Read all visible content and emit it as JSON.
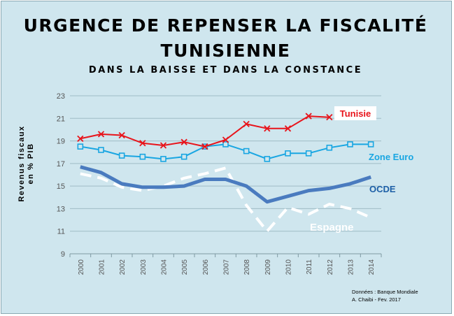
{
  "chart_data": {
    "type": "line",
    "title": "URGENCE DE REPENSER LA FISCALITÉ",
    "title_line2": "TUNISIENNE",
    "subtitle": "DANS LA BAISSE ET DANS LA CONSTANCE",
    "ylabel_line1": "Revenus fiscaux",
    "ylabel_line2": "en % PIB",
    "xlabel": "",
    "x": [
      "2000",
      "2001",
      "2002",
      "2003",
      "2004",
      "2005",
      "2006",
      "2007",
      "2008",
      "2009",
      "2010",
      "2011",
      "2012",
      "2013",
      "2014"
    ],
    "ylim": [
      9,
      23
    ],
    "yticks": [
      "9",
      "11",
      "13",
      "15",
      "17",
      "19",
      "21",
      "23"
    ],
    "grid": true,
    "series": [
      {
        "name": "Tunisie",
        "color": "#e8141b",
        "marker": "x",
        "values": [
          19.2,
          19.6,
          19.5,
          18.8,
          18.6,
          18.9,
          18.5,
          19.1,
          20.5,
          20.1,
          20.1,
          21.2,
          21.1,
          null,
          null
        ]
      },
      {
        "name": "Zone Euro",
        "color": "#19a6e2",
        "marker": "square",
        "values": [
          18.5,
          18.2,
          17.7,
          17.6,
          17.4,
          17.6,
          18.5,
          18.7,
          18.1,
          17.4,
          17.9,
          17.9,
          18.4,
          18.7,
          18.7
        ]
      },
      {
        "name": "OCDE",
        "color": "#4a7bbf",
        "marker": "none",
        "values": [
          16.7,
          16.2,
          15.2,
          14.9,
          14.9,
          15.0,
          15.6,
          15.6,
          15.0,
          13.6,
          14.1,
          14.6,
          14.8,
          15.2,
          15.8
        ]
      },
      {
        "name": "Espagne",
        "color": "#ffffff",
        "marker": "none",
        "dashed": true,
        "values": [
          16.1,
          15.7,
          14.9,
          14.6,
          15.0,
          15.7,
          16.1,
          16.6,
          13.3,
          11.0,
          13.1,
          12.5,
          13.4,
          13.0,
          12.2
        ]
      }
    ],
    "label_colors": {
      "Tunisie": "#e8141b",
      "Zone Euro": "#19a6e2",
      "OCDE": "#1d5fa6",
      "Espagne": "#ffffff"
    }
  },
  "source": {
    "line1": "Données  : Banque Mondiale",
    "line2": "A. Chaibi  - Fev. 2017"
  }
}
